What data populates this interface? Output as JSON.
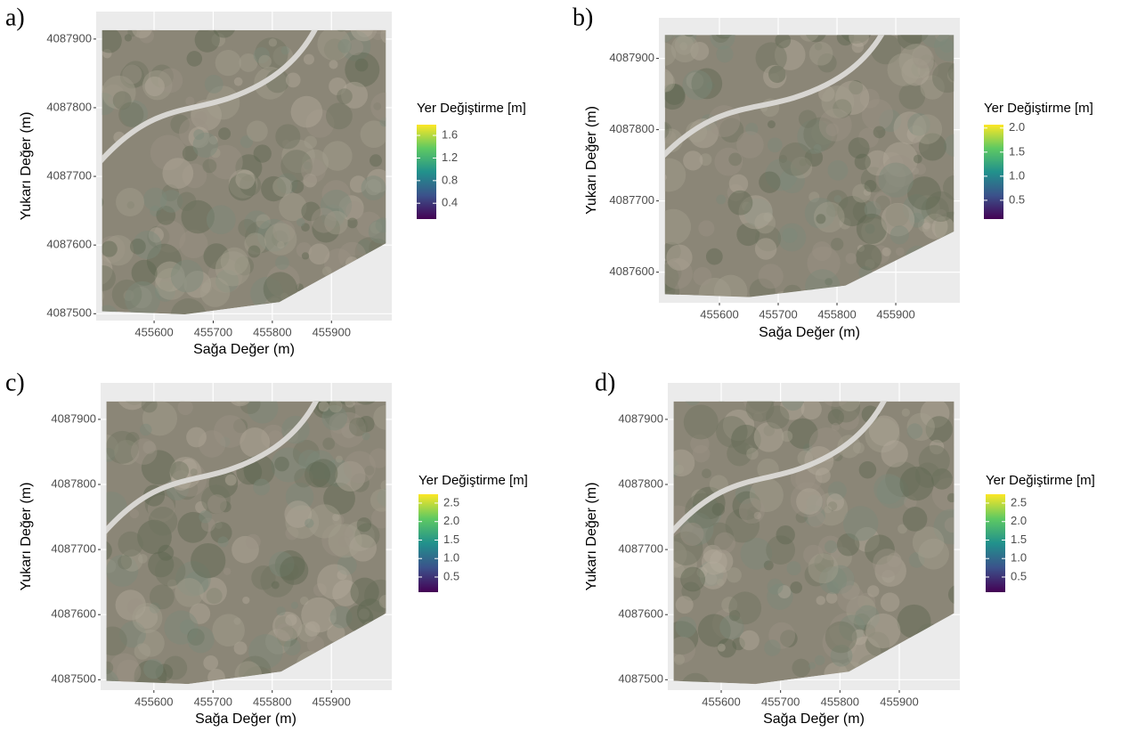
{
  "chart_data": [
    {
      "type": "vector_field",
      "panel_label": "a)",
      "xlabel": "Sağa Değer (m)",
      "ylabel": "Yukarı Değer (m)",
      "xlim": [
        455502,
        456002
      ],
      "ylim": [
        4087490,
        4087940
      ],
      "xticks": [
        455600,
        455700,
        455800,
        455900
      ],
      "yticks": [
        4087500,
        4087600,
        4087700,
        4087800,
        4087900
      ],
      "grid": true,
      "colorbar": {
        "title": "Yer Değiştirme [m]",
        "colormap": "viridis",
        "lim": [
          0.12,
          1.79
        ],
        "ticks": [
          0.4,
          0.8,
          1.2,
          1.6
        ]
      }
    },
    {
      "type": "vector_field",
      "panel_label": "b)",
      "xlabel": "Sağa Değer (m)",
      "ylabel": "Yukarı Değer (m)",
      "xlim": [
        455497,
        456009
      ],
      "ylim": [
        4087557,
        4087957
      ],
      "xticks": [
        455600,
        455700,
        455800,
        455900
      ],
      "yticks": [
        4087600,
        4087700,
        4087800,
        4087900
      ],
      "grid": true,
      "colorbar": {
        "title": "Yer Değiştirme [m]",
        "colormap": "viridis",
        "lim": [
          0.11,
          2.07
        ],
        "ticks": [
          0.5,
          {
            "value": 1,
            "label": "1.0"
          },
          1.5,
          {
            "value": 2,
            "label": "2.0"
          }
        ]
      }
    },
    {
      "type": "vector_field",
      "panel_label": "c)",
      "xlabel": "Sağa Değer (m)",
      "ylabel": "Yukarı Değer (m)",
      "xlim": [
        455510,
        456002
      ],
      "ylim": [
        4087484,
        4087956
      ],
      "xticks": [
        455600,
        455700,
        455800,
        455900
      ],
      "yticks": [
        4087500,
        4087600,
        4087700,
        4087800,
        4087900
      ],
      "grid": true,
      "colorbar": {
        "title": "Yer Değiştirme [m]",
        "colormap": "viridis",
        "lim": [
          0.09,
          2.74
        ],
        "ticks": [
          0.5,
          {
            "value": 1,
            "label": "1.0"
          },
          1.5,
          {
            "value": 2,
            "label": "2.0"
          },
          2.5
        ]
      }
    },
    {
      "type": "vector_field",
      "panel_label": "d)",
      "xlabel": "Sağa Değer (m)",
      "ylabel": "Yukarı Değer (m)",
      "xlim": [
        455510,
        456002
      ],
      "ylim": [
        4087484,
        4087956
      ],
      "xticks": [
        455600,
        455700,
        455800,
        455900
      ],
      "yticks": [
        4087500,
        4087600,
        4087700,
        4087800,
        4087900
      ],
      "grid": true,
      "colorbar": {
        "title": "Yer Değiştirme [m]",
        "colormap": "viridis",
        "lim": [
          0.09,
          2.74
        ],
        "ticks": [
          0.5,
          {
            "value": 1,
            "label": "1.0"
          },
          1.5,
          {
            "value": 2,
            "label": "2.0"
          },
          2.5
        ]
      }
    }
  ]
}
